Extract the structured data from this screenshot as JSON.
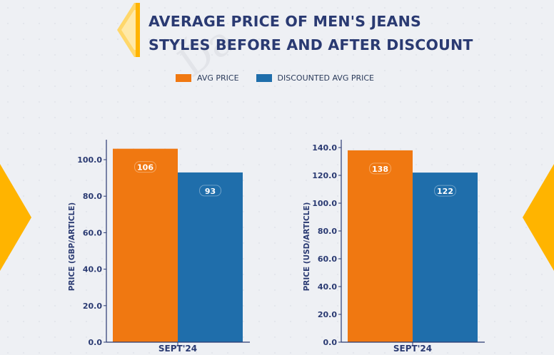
{
  "header": {
    "title_line1": "AVERAGE PRICE OF MEN'S JEANS",
    "title_line2": "STYLES BEFORE AND AFTER DISCOUNT"
  },
  "colors": {
    "title": "#2a3a72",
    "accent": "#ffb400",
    "avg_price": "#f07811",
    "discounted_avg_price": "#1f6eab"
  },
  "legend": {
    "items": [
      {
        "label": "AVG PRICE",
        "color": "#f07811"
      },
      {
        "label": "DISCOUNTED AVG PRICE",
        "color": "#1f6eab"
      }
    ],
    "placement": "top-center"
  },
  "chart_data": [
    {
      "type": "bar",
      "categories": [
        "SEPT'24"
      ],
      "series": [
        {
          "name": "AVG PRICE",
          "values": [
            106
          ]
        },
        {
          "name": "DISCOUNTED AVG PRICE",
          "values": [
            93
          ]
        }
      ],
      "xlabel": "",
      "ylabel": "PRICE (GBP/ARTICLE)",
      "ylim": [
        0,
        110
      ],
      "yticks": [
        "0.0",
        "20.0",
        "40.0",
        "60.0",
        "80.0",
        "100.0"
      ],
      "data_labels": [
        "106",
        "93"
      ],
      "grid": false
    },
    {
      "type": "bar",
      "categories": [
        "SEPT'24"
      ],
      "series": [
        {
          "name": "AVG PRICE",
          "values": [
            138
          ]
        },
        {
          "name": "DISCOUNTED AVG PRICE",
          "values": [
            122
          ]
        }
      ],
      "xlabel": "",
      "ylabel": "PRICE (USD/ARTICLE)",
      "ylim": [
        0,
        145
      ],
      "yticks": [
        "0.0",
        "20.0",
        "40.0",
        "60.0",
        "80.0",
        "100.0",
        "120.0",
        "140.0"
      ],
      "data_labels": [
        "138",
        "122"
      ],
      "grid": false
    }
  ]
}
